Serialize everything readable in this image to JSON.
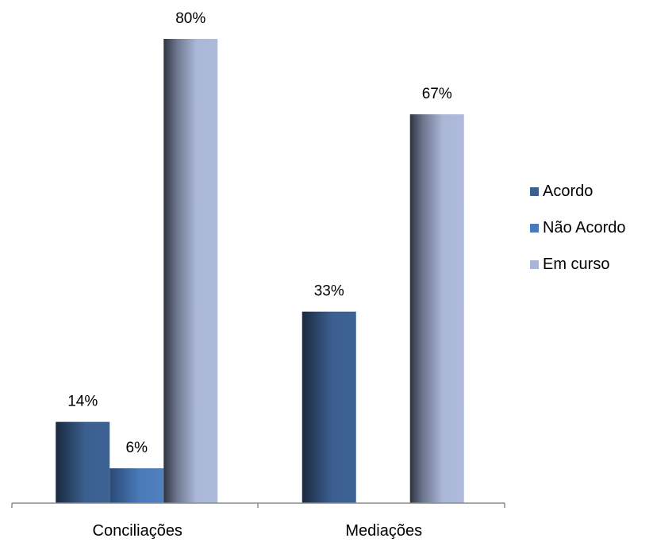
{
  "chart_data": {
    "type": "bar",
    "categories": [
      "Conciliações",
      "Mediações"
    ],
    "series": [
      {
        "name": "Acordo",
        "values": [
          14,
          33
        ],
        "labels": [
          "14%",
          "33%"
        ],
        "color": "#3B5F8F"
      },
      {
        "name": "Não Acordo",
        "values": [
          6,
          null
        ],
        "labels": [
          "6%",
          ""
        ],
        "color": "#4A7AB8"
      },
      {
        "name": "Em curso",
        "values": [
          80,
          67
        ],
        "labels": [
          "80%",
          "67%"
        ],
        "color": "#A9B6D6"
      }
    ],
    "ylim": [
      0,
      100
    ],
    "grid": false,
    "legend_position": "right",
    "title": "",
    "xlabel": "",
    "ylabel": ""
  }
}
